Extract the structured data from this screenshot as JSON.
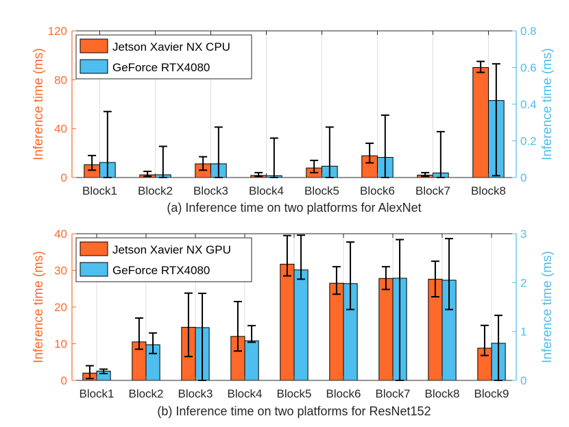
{
  "colors": {
    "left": "#FF6929",
    "right": "#4DBEEE",
    "axis": "#262626",
    "grid": "#DFDFDF"
  },
  "chart_data": [
    {
      "type": "bar",
      "caption": "(a) Inference time on two platforms for AlexNet",
      "categories": [
        "Block1",
        "Block2",
        "Block3",
        "Block4",
        "Block5",
        "Block6",
        "Block7",
        "Block8"
      ],
      "ylabel_left": "Inference time (ms)",
      "ylabel_right": "Inference time (ms)",
      "ylim_left": [
        0,
        120
      ],
      "ylim_right": [
        0,
        0.8
      ],
      "yticks_left": [
        0,
        40,
        80,
        120
      ],
      "yticks_right": [
        0,
        0.2,
        0.4,
        0.6,
        0.8
      ],
      "ytick_labels_left": [
        "0",
        "40",
        "80",
        "120"
      ],
      "ytick_labels_right": [
        "0",
        "0.2",
        "0.4",
        "0.6",
        "0.8"
      ],
      "legend_position": "top-left",
      "series": [
        {
          "name": "Jetson Xavier NX CPU",
          "axis": "left",
          "values": [
            10.5,
            2.2,
            11.2,
            1.7,
            7.8,
            17.8,
            2.0,
            90.0
          ],
          "err_low": [
            6,
            1,
            6,
            1,
            4,
            12,
            1,
            86
          ],
          "err_high": [
            18,
            5,
            17,
            4,
            14,
            28,
            4,
            95
          ]
        },
        {
          "name": "GeForce RTX4080",
          "axis": "right",
          "values": [
            0.082,
            0.015,
            0.075,
            0.01,
            0.062,
            0.11,
            0.025,
            0.42
          ],
          "err_low": [
            0.0,
            0.0,
            0.0,
            0.0,
            0.0,
            0.0,
            0.0,
            0.01
          ],
          "err_high": [
            0.36,
            0.17,
            0.275,
            0.215,
            0.275,
            0.34,
            0.25,
            0.62
          ]
        }
      ]
    },
    {
      "type": "bar",
      "caption": "(b) Inference time on two platforms for ResNet152",
      "categories": [
        "Block1",
        "Block2",
        "Block3",
        "Block4",
        "Block5",
        "Block6",
        "Block7",
        "Block8",
        "Block9"
      ],
      "ylabel_left": "Inference time (ms)",
      "ylabel_right": "Inference time (ms)",
      "ylim_left": [
        0,
        40
      ],
      "ylim_right": [
        0,
        3
      ],
      "yticks_left": [
        0,
        10,
        20,
        30,
        40
      ],
      "yticks_right": [
        0,
        1,
        2,
        3
      ],
      "ytick_labels_left": [
        "0",
        "10",
        "20",
        "30",
        "40"
      ],
      "ytick_labels_right": [
        "0",
        "1",
        "2",
        "3"
      ],
      "legend_position": "top-left",
      "series": [
        {
          "name": "Jetson Xavier NX GPU",
          "axis": "left",
          "values": [
            2.0,
            10.5,
            14.5,
            12.0,
            31.7,
            26.5,
            27.8,
            27.6,
            8.8
          ],
          "err_low": [
            0.5,
            8.5,
            6.5,
            8.0,
            28.5,
            23.5,
            24.8,
            22.8,
            6.8
          ],
          "err_high": [
            4.0,
            17.0,
            23.8,
            21.5,
            39.5,
            31.0,
            31.0,
            32.5,
            15.0
          ]
        },
        {
          "name": "GeForce RTX4080",
          "axis": "right",
          "values": [
            0.19,
            0.73,
            1.08,
            0.81,
            2.26,
            1.98,
            2.09,
            2.05,
            0.76
          ],
          "err_low": [
            0.14,
            0.55,
            0.0,
            0.78,
            2.07,
            1.45,
            0.0,
            1.45,
            0.0
          ],
          "err_high": [
            0.23,
            0.97,
            1.78,
            1.12,
            2.97,
            2.83,
            2.88,
            2.9,
            1.33
          ]
        }
      ]
    }
  ]
}
